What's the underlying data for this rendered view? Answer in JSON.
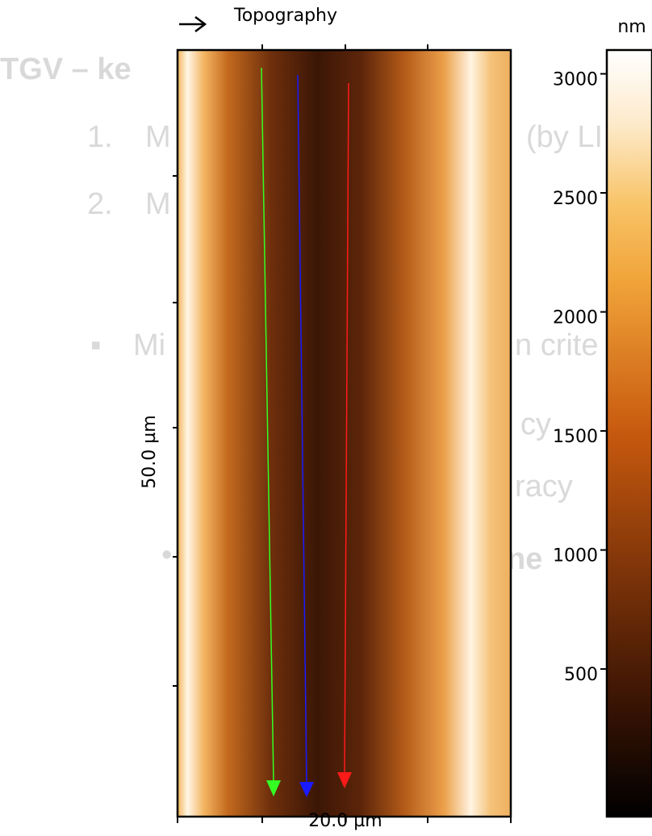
{
  "figure": {
    "title": "Topography",
    "x_label": "20.0 µm",
    "y_label": "50.0 µm",
    "colorbar": {
      "unit": "nm",
      "lim": [
        -120,
        3100
      ],
      "ticks": [
        500,
        1000,
        1500,
        2000,
        2500,
        3000
      ]
    }
  },
  "background_text": [
    "TGV – ke",
    "1.",
    "M",
    "(by LI",
    "2.",
    "M",
    "▪",
    "Mi",
    "n crite",
    "cy",
    "racy",
    "•",
    "ne"
  ]
}
